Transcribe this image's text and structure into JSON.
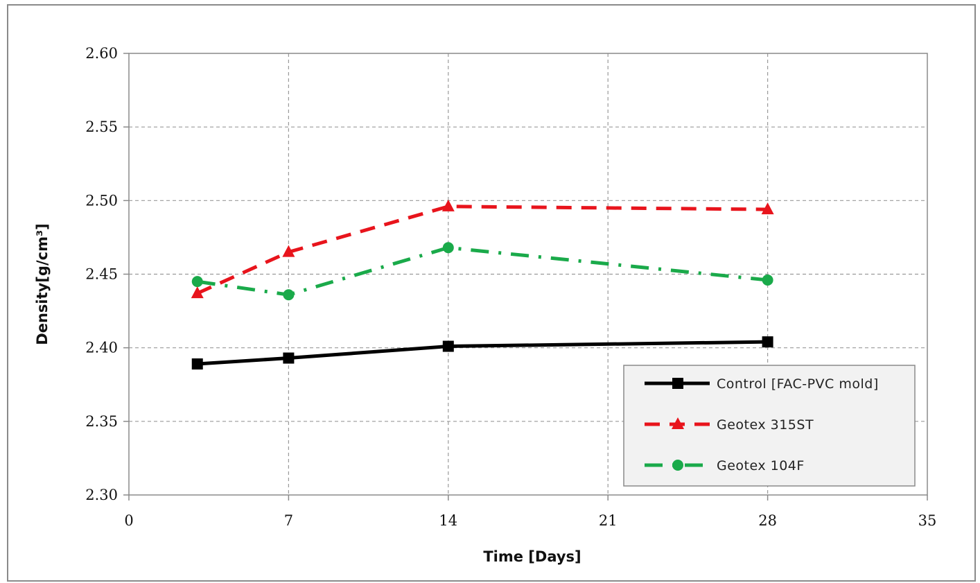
{
  "chart_data": {
    "type": "line",
    "title": "",
    "xlabel": "Time [Days]",
    "ylabel": "Density[g/cm³]",
    "xlim": [
      0,
      35
    ],
    "ylim": [
      2.3,
      2.6
    ],
    "xticks": [
      0,
      7,
      14,
      21,
      28,
      35
    ],
    "xtick_labels": [
      "0",
      "7",
      "14",
      "21",
      "28",
      "35"
    ],
    "yticks": [
      2.3,
      2.35,
      2.4,
      2.45,
      2.5,
      2.55,
      2.6
    ],
    "ytick_labels": [
      "2.30",
      "2.35",
      "2.40",
      "2.45",
      "2.50",
      "2.55",
      "2.60"
    ],
    "grid": true,
    "legend_position": "bottom-right",
    "series": [
      {
        "name": "Control [FAC-PVC mold]",
        "color": "#000000",
        "line_style": "solid",
        "marker": "square",
        "x": [
          3,
          7,
          14,
          28
        ],
        "y": [
          2.389,
          2.393,
          2.401,
          2.404
        ]
      },
      {
        "name": "Geotex 315ST",
        "color": "#e8141c",
        "line_style": "dashed",
        "marker": "triangle",
        "x": [
          3,
          7,
          14,
          28
        ],
        "y": [
          2.437,
          2.465,
          2.496,
          2.494
        ]
      },
      {
        "name": "Geotex 104F",
        "color": "#1aaa4a",
        "line_style": "dash-dot",
        "marker": "circle",
        "x": [
          3,
          7,
          14,
          28
        ],
        "y": [
          2.445,
          2.436,
          2.468,
          2.446
        ]
      }
    ]
  }
}
